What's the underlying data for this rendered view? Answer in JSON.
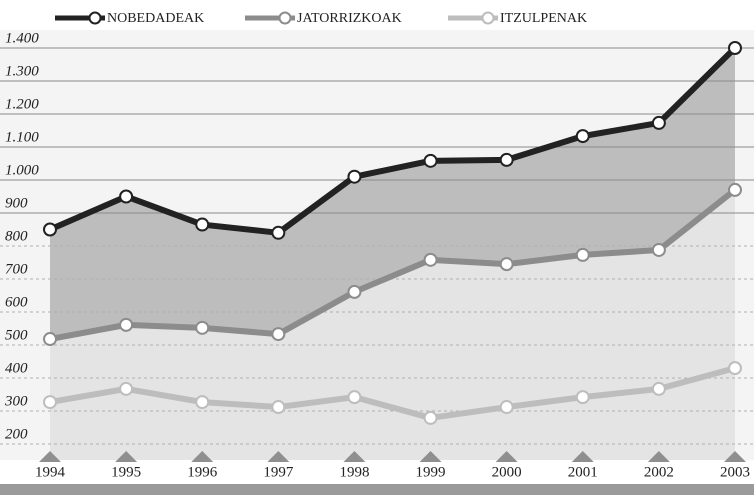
{
  "chart_data": {
    "type": "line",
    "categories": [
      "1994",
      "1995",
      "1996",
      "1997",
      "1998",
      "1999",
      "2000",
      "2001",
      "2002",
      "2003"
    ],
    "series": [
      {
        "name": "NOBEDADEAK",
        "color": "#222222",
        "values": [
          850,
          950,
          865,
          840,
          1010,
          1058,
          1061,
          1133,
          1173,
          1400
        ]
      },
      {
        "name": "JATORRIZKOAK",
        "color": "#8c8c8c",
        "values": [
          518,
          561,
          552,
          533,
          661,
          758,
          745,
          773,
          788,
          970
        ]
      },
      {
        "name": "ITZULPENAK",
        "color": "#bdbdbd",
        "values": [
          327,
          367,
          327,
          312,
          342,
          279,
          312,
          342,
          367,
          430
        ]
      }
    ],
    "ylim": [
      180,
      1440
    ],
    "yticks": [
      {
        "value": 1400,
        "label": "1.400"
      },
      {
        "value": 1300,
        "label": "1.300"
      },
      {
        "value": 1200,
        "label": "1.200"
      },
      {
        "value": 1100,
        "label": "1.100"
      },
      {
        "value": 1000,
        "label": "1.000"
      },
      900,
      800,
      700,
      600,
      500,
      400,
      300,
      200
    ],
    "grid": true,
    "legend": "top"
  }
}
